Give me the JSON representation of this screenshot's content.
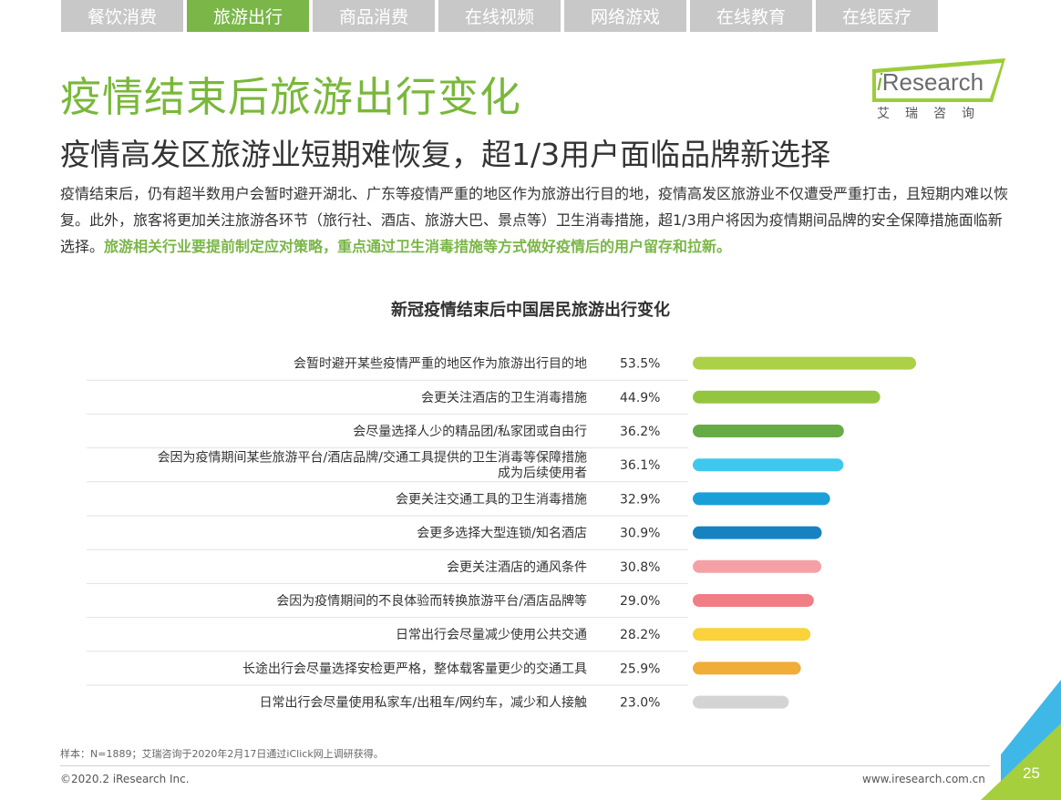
{
  "tabs": [
    {
      "label": "餐饮消费",
      "active": false
    },
    {
      "label": "旅游出行",
      "active": true
    },
    {
      "label": "商品消费",
      "active": false
    },
    {
      "label": "在线视频",
      "active": false
    },
    {
      "label": "网络游戏",
      "active": false
    },
    {
      "label": "在线教育",
      "active": false
    },
    {
      "label": "在线医疗",
      "active": false
    }
  ],
  "header": {
    "title": "疫情结束后旅游出行变化",
    "subtitle": "疫情高发区旅游业短期难恢复，超1/3用户面临品牌新选择"
  },
  "logo": {
    "i": "i",
    "brand": "Research",
    "cn": "艾瑞咨询"
  },
  "paragraph": {
    "text": "疫情结束后，仍有超半数用户会暂时避开湖北、广东等疫情严重的地区作为旅游出行目的地，疫情高发区旅游业不仅遭受严重打击，且短期内难以恢复。此外，旅客将更加关注旅游各环节（旅行社、酒店、旅游大巴、景点等）卫生消毒措施，超1/3用户将因为疫情期间品牌的安全保障措施面临新选择。",
    "highlight": "旅游相关行业要提前制定应对策略，重点通过卫生消毒措施等方式做好疫情后的用户留存和拉新。"
  },
  "chart_data": {
    "type": "bar",
    "orientation": "horizontal",
    "title": "新冠疫情结束后中国居民旅游出行变化",
    "categories": [
      [
        "会暂时避开某些疫情严重的地区作为旅游出行目的地"
      ],
      [
        "会更关注酒店的卫生消毒措施"
      ],
      [
        "会尽量选择人少的精品团/私家团或自由行"
      ],
      [
        "会因为疫情期间某些旅游平台/酒店品牌/交通工具提供的卫生消毒等保障措施",
        "成为后续使用者"
      ],
      [
        "会更关注交通工具的卫生消毒措施"
      ],
      [
        "会更多选择大型连锁/知名酒店"
      ],
      [
        "会更关注酒店的通风条件"
      ],
      [
        "会因为疫情期间的不良体验而转换旅游平台/酒店品牌等"
      ],
      [
        "日常出行会尽量减少使用公共交通"
      ],
      [
        "长途出行会尽量选择安检更严格，整体载客量更少的交通工具"
      ],
      [
        "日常出行会尽量使用私家车/出租车/网约车，减少和人接触"
      ]
    ],
    "values": [
      53.5,
      44.9,
      36.2,
      36.1,
      32.9,
      30.9,
      30.8,
      29.0,
      28.2,
      25.9,
      23.0
    ],
    "value_labels": [
      "53.5%",
      "44.9%",
      "36.2%",
      "36.1%",
      "32.9%",
      "30.9%",
      "30.8%",
      "29.0%",
      "28.2%",
      "25.9%",
      "23.0%"
    ],
    "colors": [
      "#acd147",
      "#93c541",
      "#67ab45",
      "#3ec8ee",
      "#1aa0d9",
      "#1683c0",
      "#f4a1a5",
      "#ef7e85",
      "#f9d23c",
      "#f0ad38",
      "#d4d4d4"
    ],
    "xlim": [
      0,
      53.5
    ],
    "grid": false,
    "legend": "none"
  },
  "footer": {
    "note": "样本：N=1889；艾瑞咨询于2020年2月17日通过iClick网上调研获得。",
    "copyright": "©2020.2 iResearch Inc.",
    "site": "www.iresearch.com.cn",
    "page": "25"
  },
  "decor": {
    "accent_green": "#7ab648",
    "corner_blue": "#3fb8e8",
    "corner_green": "#a6cf3d"
  }
}
